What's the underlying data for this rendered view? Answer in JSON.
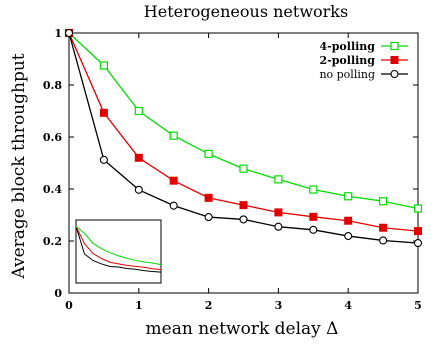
{
  "chart_data": {
    "type": "line",
    "title": "Heterogeneous networks",
    "xlabel": "mean network delay Δ",
    "ylabel": "Average block throughput",
    "xlim": [
      0,
      5
    ],
    "ylim": [
      0,
      1
    ],
    "x_ticks": [
      "0",
      "1",
      "2",
      "3",
      "4",
      "5"
    ],
    "y_ticks": [
      "0",
      "0.2",
      "0.4",
      "0.6",
      "0.8",
      "1"
    ],
    "grid": false,
    "legend_position": "top-right",
    "x": [
      0,
      0.5,
      1,
      1.5,
      2,
      2.5,
      3,
      3.5,
      4,
      4.5,
      5
    ],
    "series": [
      {
        "name": "4-polling",
        "color": "#00dd00",
        "marker": "open-square",
        "values": [
          1.0,
          0.875,
          0.7,
          0.605,
          0.535,
          0.478,
          0.437,
          0.398,
          0.372,
          0.353,
          0.325
        ]
      },
      {
        "name": "2-polling",
        "color": "#e00000",
        "marker": "filled-square",
        "values": [
          1.0,
          0.693,
          0.52,
          0.432,
          0.366,
          0.338,
          0.31,
          0.293,
          0.278,
          0.251,
          0.238
        ]
      },
      {
        "name": "no polling",
        "color": "#000000",
        "marker": "open-circle",
        "values": [
          1.0,
          0.512,
          0.397,
          0.336,
          0.292,
          0.283,
          0.255,
          0.243,
          0.219,
          0.202,
          0.192
        ]
      }
    ],
    "inset": {
      "series_colors": [
        "#00dd00",
        "#e00000",
        "#000000"
      ]
    }
  }
}
